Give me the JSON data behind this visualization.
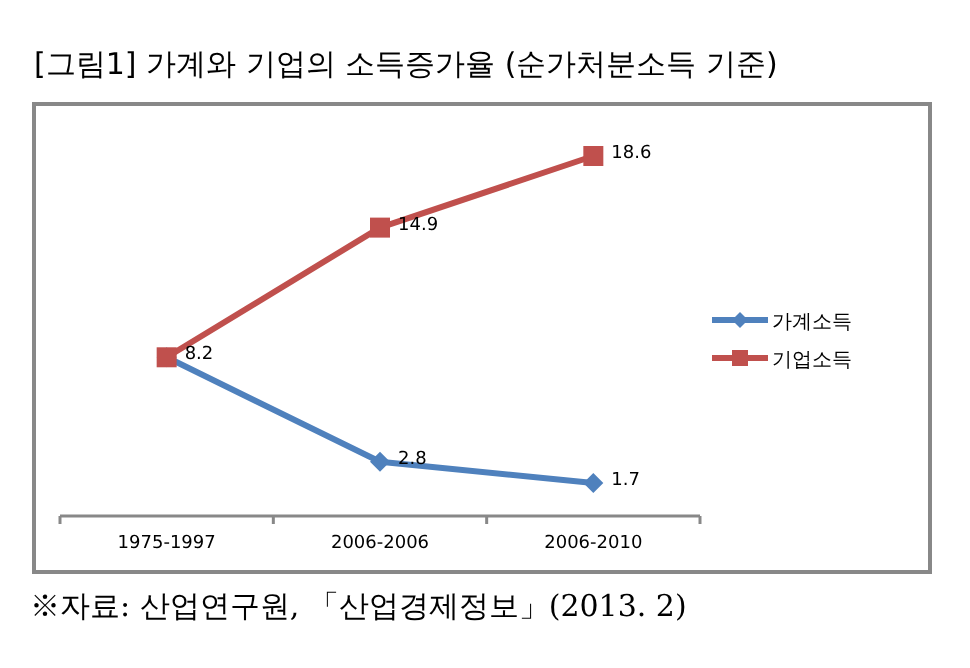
{
  "chart_data": {
    "type": "line",
    "title": "[그림1] 가계와 기업의 소득증가율 (순가처분소득 기준)",
    "categories": [
      "1975-1997",
      "2006-2006",
      "2006-2010"
    ],
    "series": [
      {
        "name": "가계소득",
        "color": "#4f81bd",
        "marker": "diamond",
        "values": [
          8.2,
          2.8,
          1.7
        ],
        "value_labels": [
          null,
          "2.8",
          "1.7"
        ]
      },
      {
        "name": "기업소득",
        "color": "#c0504d",
        "marker": "square",
        "values": [
          8.2,
          14.9,
          18.6
        ],
        "value_labels": [
          "8.2",
          "14.9",
          "18.6"
        ]
      }
    ],
    "legend": "right",
    "grid": false,
    "annotations": [
      "※자료: 산업연구원, 「산업경제정보」(2013. 2)"
    ]
  }
}
